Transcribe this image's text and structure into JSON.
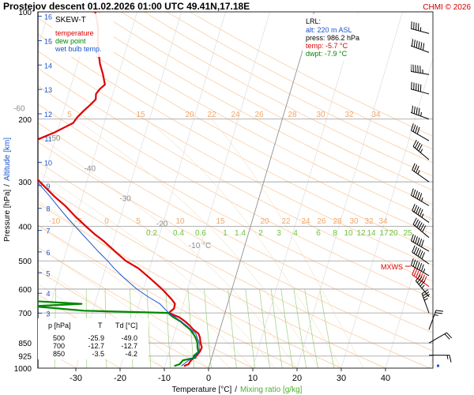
{
  "header": {
    "title": "Prostejov   descent   01.02.2026 01:00 UTC  49.41N,17.18E",
    "credit": "CHMI © 2026"
  },
  "legend": {
    "title": "SKEW-T",
    "items": [
      {
        "label": "temperature",
        "color": "#dd0000"
      },
      {
        "label": "dew point",
        "color": "#008800"
      },
      {
        "label": "wet bulb temp.",
        "color": "#1a55cc"
      }
    ]
  },
  "lrl": {
    "title": "LRL:",
    "lines": [
      {
        "text": "alt: 220 m ASL",
        "color": "#1a55cc"
      },
      {
        "text": "press: 986.2 hPa",
        "color": "#000000"
      },
      {
        "text": "temp: -5.7 °C",
        "color": "#dd0000"
      },
      {
        "text": "dwpt: -7.9 °C",
        "color": "#008800"
      }
    ]
  },
  "table": {
    "headers": [
      "p [hPa]",
      "T",
      "Td [°C]"
    ],
    "rows": [
      [
        "500",
        "-25.9",
        "-49.0"
      ],
      [
        "700",
        "-12.7",
        "-12.7"
      ],
      [
        "850",
        "-3.5",
        "-4.2"
      ]
    ]
  },
  "mxws_label": "MXWS",
  "chart_data": {
    "type": "line",
    "title": "Prostejov   descent   01.02.2026 01:00 UTC  49.41N,17.18E",
    "xlabel": "Temperature [°C]",
    "xlabel_sep": "/",
    "xlabel2": "Mixing ratio [g/kg]",
    "ylabel_left": "Pressure [hPa]",
    "ylabel_sep": "/",
    "ylabel_right": "Altitude [km]",
    "xlim": [
      -35,
      45
    ],
    "ylim": [
      1000,
      100
    ],
    "y_scale": "log",
    "grid": true,
    "x_ticks": [
      -30,
      -20,
      -10,
      0,
      10,
      20,
      30,
      40
    ],
    "x_tick_labels": [
      "-30",
      "-20",
      "-10",
      "0",
      "10",
      "20",
      "30",
      "40"
    ],
    "pressure_ticks": [
      100,
      200,
      300,
      400,
      500,
      600,
      700,
      850,
      925,
      1000
    ],
    "pressure_tick_labels": [
      "100",
      "200",
      "300",
      "400",
      "500",
      "600",
      "700",
      "850",
      "925",
      "1000"
    ],
    "altitude_ticks_km": [
      1,
      2,
      3,
      4,
      5,
      6,
      7,
      8,
      9,
      10,
      11,
      12,
      13,
      14,
      15,
      16
    ],
    "altitude_tick_labels": [
      "1",
      "2",
      "3",
      "4",
      "5",
      "6",
      "7",
      "8",
      "9",
      "10",
      "11",
      "12",
      "13",
      "14",
      "15",
      "16"
    ],
    "isotherm_labels": [
      {
        "t": -80,
        "text": "-80 °C"
      },
      {
        "t": -70,
        "text": "-70"
      },
      {
        "t": -60,
        "text": "-60"
      },
      {
        "t": -50,
        "text": "-50"
      },
      {
        "t": -40,
        "text": "-40"
      },
      {
        "t": -30,
        "text": "-30"
      },
      {
        "t": -20,
        "text": "-20"
      },
      {
        "t": -10,
        "text": "-10 °C"
      }
    ],
    "theta_labels_upper": [
      "5",
      "15",
      "20",
      "22",
      "24",
      "26",
      "28",
      "30",
      "32",
      "34"
    ],
    "theta_labels_lower": [
      "-10",
      "-5",
      "0",
      "5",
      "10",
      "15",
      "20",
      "22",
      "24",
      "26",
      "28",
      "30",
      "32",
      "34"
    ],
    "mixing_ratio_labels": [
      "0.2",
      "0.4",
      "0.6",
      "1",
      "1.4",
      "2",
      "3",
      "4",
      "6",
      "8",
      "10",
      "12",
      "14",
      "17",
      "20",
      "25"
    ],
    "series": [
      {
        "name": "temperature",
        "color": "#dd0000",
        "points": [
          [
            986.2,
            -5.7
          ],
          [
            975,
            -4.8
          ],
          [
            950,
            -4.5
          ],
          [
            925,
            -3.6
          ],
          [
            900,
            -3.1
          ],
          [
            875,
            -2.9
          ],
          [
            850,
            -3.5
          ],
          [
            820,
            -4.0
          ],
          [
            800,
            -4.6
          ],
          [
            780,
            -6.0
          ],
          [
            760,
            -7.1
          ],
          [
            740,
            -8.4
          ],
          [
            720,
            -10.0
          ],
          [
            700,
            -12.7
          ],
          [
            680,
            -11.8
          ],
          [
            660,
            -11.9
          ],
          [
            640,
            -13.0
          ],
          [
            600,
            -15.8
          ],
          [
            560,
            -19.2
          ],
          [
            525,
            -22.5
          ],
          [
            500,
            -25.9
          ],
          [
            470,
            -29.0
          ],
          [
            440,
            -32.2
          ],
          [
            420,
            -34.8
          ],
          [
            400,
            -37.2
          ],
          [
            375,
            -40.3
          ],
          [
            350,
            -43.3
          ],
          [
            330,
            -46.3
          ],
          [
            300,
            -50.6
          ],
          [
            280,
            -53.4
          ],
          [
            265,
            -56.2
          ],
          [
            255,
            -57.6
          ],
          [
            248,
            -58.0
          ],
          [
            240,
            -57.2
          ],
          [
            233,
            -55.2
          ],
          [
            225,
            -52.9
          ],
          [
            218,
            -50.6
          ],
          [
            210,
            -48.4
          ],
          [
            205,
            -47.0
          ],
          [
            198,
            -46.5
          ],
          [
            190,
            -45.5
          ],
          [
            182,
            -44.3
          ],
          [
            176,
            -43.5
          ],
          [
            170,
            -43.8
          ],
          [
            165,
            -43.3
          ],
          [
            160,
            -42.4
          ],
          [
            150,
            -43.5
          ],
          [
            140,
            -44.9
          ],
          [
            130,
            -46.0
          ],
          [
            120,
            -47.0
          ],
          [
            112,
            -47.6
          ],
          [
            105,
            -48.6
          ],
          [
            100,
            -49.5
          ]
        ]
      },
      {
        "name": "dew point",
        "color": "#008800",
        "points": [
          [
            986.2,
            -7.9
          ],
          [
            975,
            -6.8
          ],
          [
            950,
            -6.3
          ],
          [
            935,
            -3.6
          ],
          [
            925,
            -4.2
          ],
          [
            900,
            -3.4
          ],
          [
            875,
            -3.9
          ],
          [
            850,
            -4.2
          ],
          [
            820,
            -5.0
          ],
          [
            800,
            -5.8
          ],
          [
            780,
            -6.7
          ],
          [
            760,
            -8.1
          ],
          [
            740,
            -9.4
          ],
          [
            720,
            -11.3
          ],
          [
            705,
            -12.5
          ],
          [
            700,
            -12.7
          ],
          [
            690,
            -32.0
          ],
          [
            670,
            -44.0
          ],
          [
            660,
            -33.0
          ],
          [
            648,
            -44.5
          ],
          [
            635,
            -46.8
          ],
          [
            620,
            -47.5
          ],
          [
            600,
            -50.0
          ],
          [
            585,
            -51.5
          ],
          [
            570,
            -50.2
          ],
          [
            550,
            -50.5
          ],
          [
            525,
            -48.2
          ],
          [
            500,
            -49.0
          ],
          [
            470,
            -52.0
          ],
          [
            440,
            -56.7
          ],
          [
            410,
            -59.4
          ],
          [
            380,
            -60.5
          ],
          [
            355,
            -63.1
          ],
          [
            330,
            -65.5
          ],
          [
            310,
            -70.7
          ],
          [
            300,
            -66.5
          ],
          [
            290,
            -61.0
          ],
          [
            280,
            -58.0
          ],
          [
            270,
            -62.5
          ],
          [
            260,
            -61.5
          ],
          [
            250,
            -64.0
          ],
          [
            240,
            -68.3
          ],
          [
            230,
            -65.0
          ],
          [
            215,
            -68.5
          ],
          [
            200,
            -73.5
          ],
          [
            190,
            -75.0
          ],
          [
            180,
            -73.5
          ],
          [
            165,
            -73.0
          ],
          [
            150,
            -73.8
          ],
          [
            135,
            -74.5
          ],
          [
            120,
            -75.5
          ],
          [
            110,
            -75.0
          ],
          [
            100,
            -73.5
          ]
        ]
      },
      {
        "name": "wet bulb temp.",
        "color": "#1a55cc",
        "points": [
          [
            986.2,
            -6.3
          ],
          [
            950,
            -5.0
          ],
          [
            925,
            -3.9
          ],
          [
            900,
            -3.2
          ],
          [
            850,
            -3.8
          ],
          [
            800,
            -5.2
          ],
          [
            760,
            -7.8
          ],
          [
            720,
            -10.9
          ],
          [
            700,
            -12.7
          ],
          [
            660,
            -15.3
          ],
          [
            630,
            -18.5
          ],
          [
            600,
            -21.5
          ],
          [
            560,
            -25.0
          ],
          [
            525,
            -28.0
          ],
          [
            500,
            -30.0
          ],
          [
            470,
            -32.8
          ],
          [
            440,
            -35.6
          ],
          [
            410,
            -38.6
          ],
          [
            380,
            -41.8
          ],
          [
            355,
            -44.5
          ],
          [
            330,
            -47.3
          ],
          [
            300,
            -51.2
          ]
        ]
      }
    ],
    "wind_barbs": [
      {
        "p": 100,
        "dir": 280,
        "spd": 45
      },
      {
        "p": 115,
        "dir": 285,
        "spd": 55
      },
      {
        "p": 130,
        "dir": 290,
        "spd": 70
      },
      {
        "p": 150,
        "dir": 280,
        "spd": 65
      },
      {
        "p": 170,
        "dir": 285,
        "spd": 60
      },
      {
        "p": 200,
        "dir": 290,
        "spd": 55
      },
      {
        "p": 230,
        "dir": 300,
        "spd": 40
      },
      {
        "p": 260,
        "dir": 310,
        "spd": 45
      },
      {
        "p": 300,
        "dir": 305,
        "spd": 35
      },
      {
        "p": 350,
        "dir": 300,
        "spd": 55
      },
      {
        "p": 390,
        "dir": 305,
        "spd": 55
      },
      {
        "p": 430,
        "dir": 310,
        "spd": 60
      },
      {
        "p": 470,
        "dir": 300,
        "spd": 60
      },
      {
        "p": 510,
        "dir": 305,
        "spd": 60
      },
      {
        "p": 550,
        "dir": 300,
        "spd": 65
      },
      {
        "p": 590,
        "dir": 305,
        "spd": 70
      },
      {
        "p": 630,
        "dir": 320,
        "spd": 45
      },
      {
        "p": 700,
        "dir": 340,
        "spd": 35
      },
      {
        "p": 780,
        "dir": 20,
        "spd": 25
      },
      {
        "p": 850,
        "dir": 60,
        "spd": 20
      },
      {
        "p": 920,
        "dir": 90,
        "spd": 15
      },
      {
        "p": 985,
        "dir": 0,
        "spd": 0
      }
    ]
  }
}
